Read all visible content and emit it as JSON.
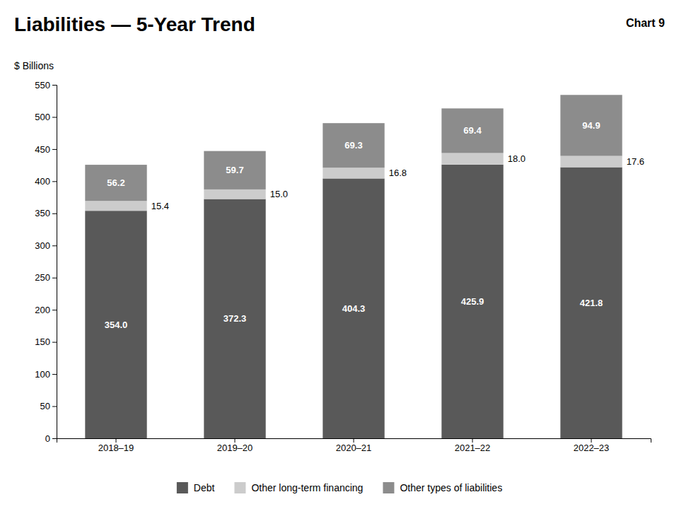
{
  "chart_data": {
    "type": "bar",
    "stacked": true,
    "title": "Liabilities — 5-Year Trend",
    "annotations": [
      "Chart 9"
    ],
    "ylabel": "$ Billions",
    "categories": [
      "2018–19",
      "2019–20",
      "2020–21",
      "2021–22",
      "2022–23"
    ],
    "series": [
      {
        "name": "Debt",
        "color": "#595959",
        "values": [
          354.0,
          372.3,
          404.3,
          425.9,
          421.8
        ],
        "value_labels": [
          "354.0",
          "372.3",
          "404.3",
          "425.9",
          "421.8"
        ]
      },
      {
        "name": "Other long-term financing",
        "color": "#cccccc",
        "values": [
          15.4,
          15.0,
          16.8,
          18.0,
          17.6
        ],
        "value_labels": [
          "15.4",
          "15.0",
          "16.8",
          "18.0",
          "17.6"
        ]
      },
      {
        "name": "Other types of liabilities",
        "color": "#8c8c8c",
        "values": [
          56.2,
          59.7,
          69.3,
          69.4,
          94.9
        ],
        "value_labels": [
          "56.2",
          "59.7",
          "69.3",
          "69.4",
          "94.9"
        ]
      }
    ],
    "ylim": [
      0,
      550
    ],
    "yticks": [
      0,
      50,
      100,
      150,
      200,
      250,
      300,
      350,
      400,
      450,
      500,
      550
    ],
    "grid": false,
    "legend": "bottom",
    "data_labels": true
  }
}
